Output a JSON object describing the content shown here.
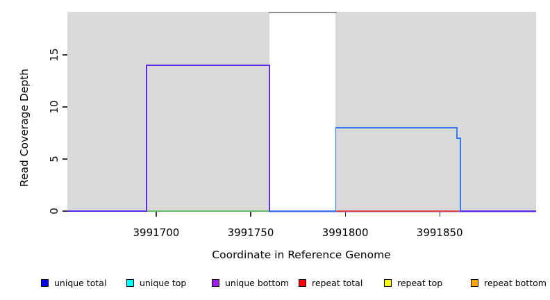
{
  "chart_data": {
    "type": "line",
    "subtype": "step-coverage-plot",
    "title": "",
    "xlabel": "Coordinate in Reference Genome",
    "ylabel": "Read Coverage Depth",
    "x_ticks": [
      3991700,
      3991750,
      3991800,
      3991850
    ],
    "x_tick_labels": [
      "3991700",
      "3991750",
      "3991800",
      "3991850"
    ],
    "y_ticks": [
      0,
      5,
      10,
      15
    ],
    "y_tick_labels": [
      "0",
      "5",
      "10",
      "15"
    ],
    "xlim": [
      3991653,
      3991901
    ],
    "ylim": [
      0,
      19.13
    ],
    "grid": false,
    "panel_bg": "#d9d9d9",
    "masked_region": {
      "x_start": 3991760,
      "x_end": 3991795,
      "fill": "#ffffff",
      "note": "white vertical band over panel; gray clipped coverage line at top (~depth 19)"
    },
    "series": [
      {
        "name": "unique total",
        "color": "#0000ff",
        "steps": [
          {
            "x": [
              3991795,
              3991859
            ],
            "depth": 8
          },
          {
            "x": [
              3991859,
              3991861
            ],
            "depth": 7
          }
        ],
        "elsewhere_depth": 0
      },
      {
        "name": "unique top",
        "color": "#00ffff",
        "steps": [],
        "elsewhere_depth": 0
      },
      {
        "name": "unique bottom",
        "color": "#a020f0",
        "steps": [
          {
            "x": [
              3991695,
              3991760
            ],
            "depth": 14
          }
        ],
        "elsewhere_depth": 0
      },
      {
        "name": "repeat total",
        "color": "#ff0000",
        "steps": [],
        "elsewhere_depth": 0
      },
      {
        "name": "repeat top",
        "color": "#ffff00",
        "steps": [],
        "elsewhere_depth": 0
      },
      {
        "name": "repeat bottom",
        "color": "#ffa500",
        "steps": [],
        "elsewhere_depth": 0
      }
    ],
    "rendered_traces": [
      {
        "name": "green-baseline",
        "color": "#62be62",
        "width": 1.4,
        "path": [
          [
            3991695,
            0
          ],
          [
            3991760,
            0
          ]
        ]
      },
      {
        "name": "lavender-baseline",
        "color": "#c3aeee",
        "width": 1.2,
        "path": [
          [
            3991760,
            -0.09
          ],
          [
            3991901,
            -0.09
          ]
        ]
      },
      {
        "name": "red-baseline",
        "color": "#e04848",
        "width": 1.4,
        "path": [
          [
            3991795,
            0
          ],
          [
            3991861,
            0
          ]
        ]
      },
      {
        "name": "unique-bottom",
        "color": "#5c2be8",
        "width": 1.7,
        "path": [
          [
            3991653,
            0
          ],
          [
            3991695,
            0
          ],
          [
            3991695,
            14
          ],
          [
            3991760,
            14
          ],
          [
            3991760,
            0
          ]
        ]
      },
      {
        "name": "unique-total",
        "color": "#2e7bff",
        "width": 1.7,
        "path": [
          [
            3991760,
            0
          ],
          [
            3991795,
            0
          ],
          [
            3991795,
            8
          ],
          [
            3991859,
            8
          ],
          [
            3991859,
            7
          ],
          [
            3991861,
            7
          ],
          [
            3991861,
            0
          ]
        ]
      },
      {
        "name": "right-baseline",
        "color": "#5c2be8",
        "width": 1.7,
        "path": [
          [
            3991861,
            0
          ],
          [
            3991901,
            0
          ]
        ]
      },
      {
        "name": "clipped-coverage",
        "color": "#8e8e8e",
        "width": 2,
        "path": [
          [
            3991759.5,
            19.05
          ],
          [
            3991795.5,
            19.05
          ]
        ]
      }
    ],
    "legend_position": "bottom"
  },
  "legend": {
    "items": [
      {
        "label": "unique total",
        "color": "#0000ff"
      },
      {
        "label": "unique top",
        "color": "#00ffff"
      },
      {
        "label": "unique bottom",
        "color": "#a020f0"
      },
      {
        "label": "repeat total",
        "color": "#ff0000"
      },
      {
        "label": "repeat top",
        "color": "#ffff00"
      },
      {
        "label": "repeat bottom",
        "color": "#ffa500"
      }
    ]
  }
}
